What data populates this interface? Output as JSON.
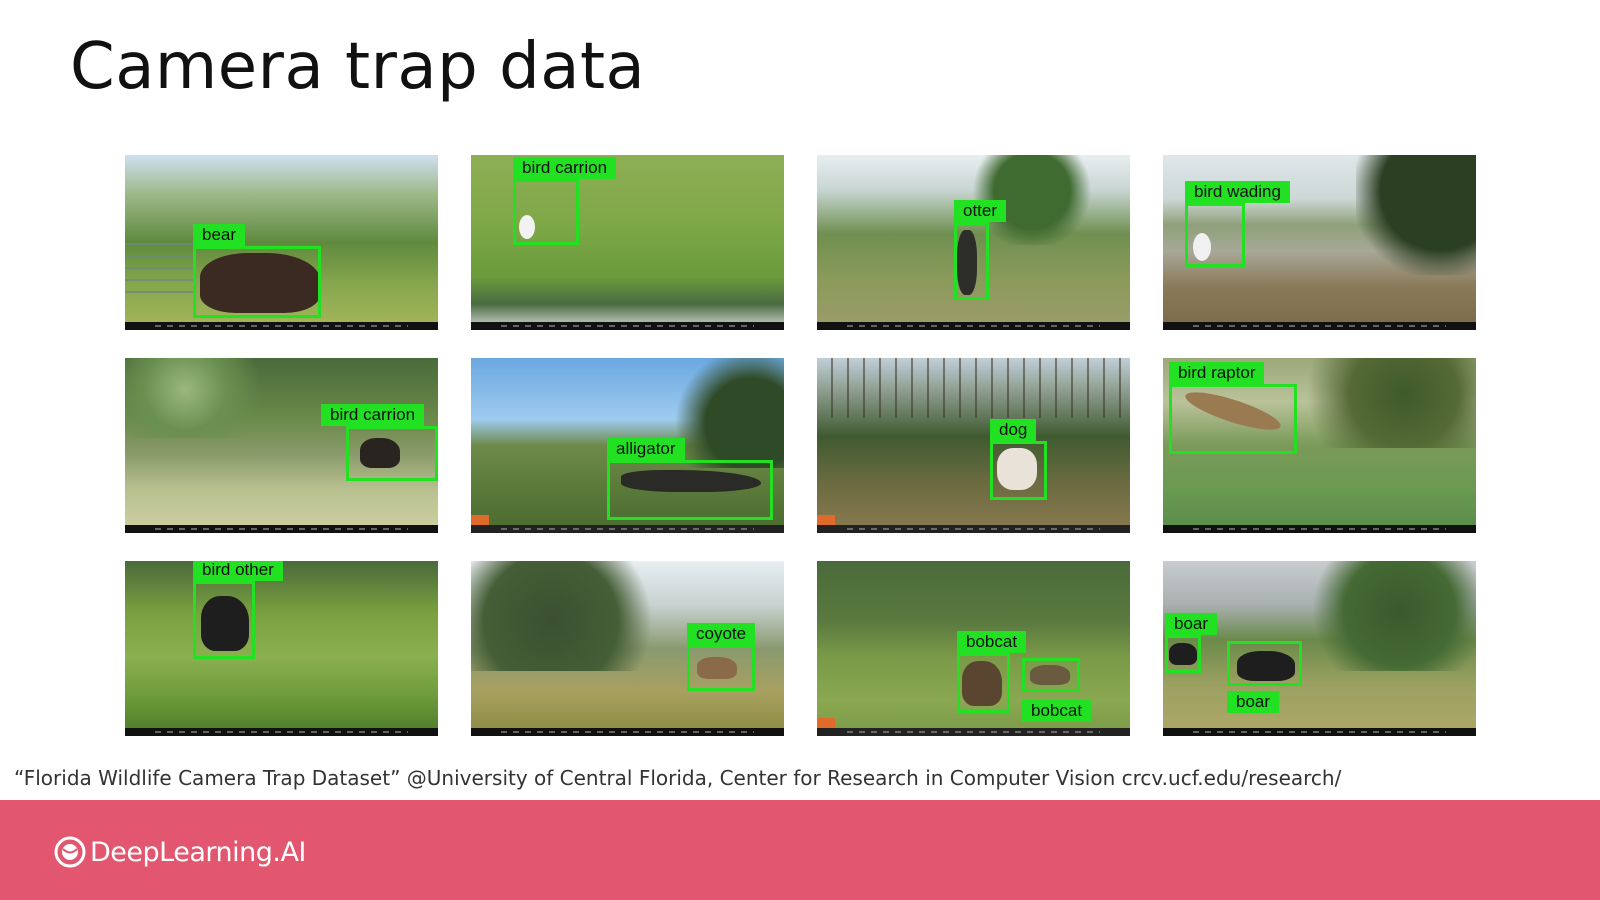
{
  "slide": {
    "title": "Camera trap data",
    "citation": "“Florida Wildlife Camera Trap Dataset” @University of Central Florida, Center for Research in Computer Vision crcv.ucf.edu/research/",
    "brand": "DeepLearning.AI"
  },
  "photos": [
    {
      "labels": [
        "bear"
      ]
    },
    {
      "labels": [
        "bird carrion"
      ]
    },
    {
      "labels": [
        "otter"
      ]
    },
    {
      "labels": [
        "bird wading"
      ]
    },
    {
      "labels": [
        "bird carrion"
      ]
    },
    {
      "labels": [
        "alligator"
      ]
    },
    {
      "labels": [
        "dog"
      ]
    },
    {
      "labels": [
        "bird raptor"
      ]
    },
    {
      "labels": [
        "bird other"
      ]
    },
    {
      "labels": [
        "coyote"
      ]
    },
    {
      "labels": [
        "bobcat",
        "bobcat"
      ]
    },
    {
      "labels": [
        "boar",
        "boar"
      ]
    }
  ],
  "colors": {
    "bounding_box": "#22e022",
    "footer": "#e2566f"
  }
}
